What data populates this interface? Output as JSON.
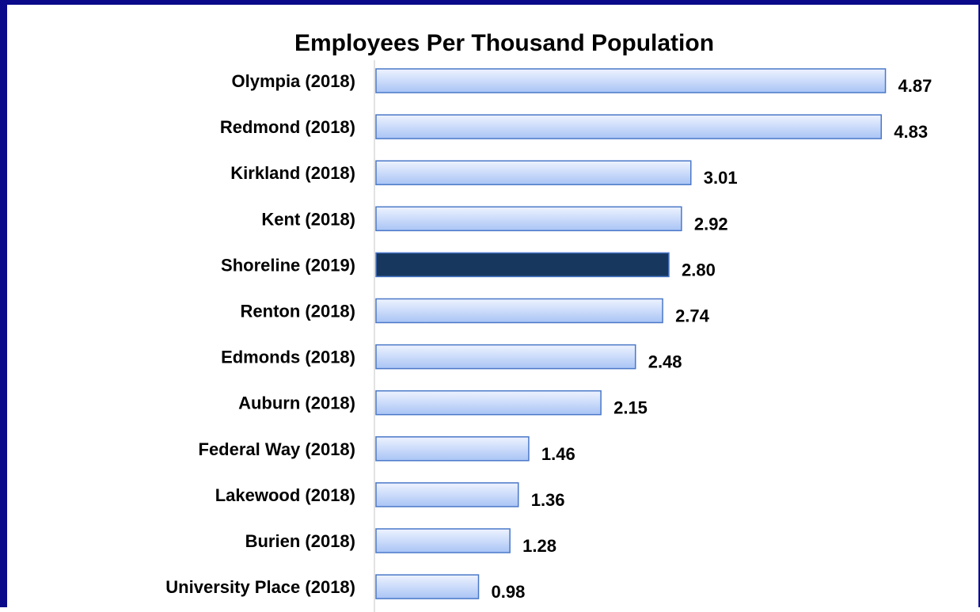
{
  "chart_data": {
    "type": "bar",
    "orientation": "horizontal",
    "title": "Employees Per Thousand Population",
    "xlabel": "",
    "ylabel": "",
    "xlim": [
      0,
      5.6
    ],
    "grid": false,
    "legend": "none",
    "categories": [
      "Olympia (2018)",
      "Redmond (2018)",
      "Kirkland (2018)",
      "Kent (2018)",
      "Shoreline (2019)",
      "Renton (2018)",
      "Edmonds (2018)",
      "Auburn (2018)",
      "Federal Way (2018)",
      "Lakewood (2018)",
      "Burien (2018)",
      "University Place (2018)"
    ],
    "values": [
      4.87,
      4.83,
      3.01,
      2.92,
      2.8,
      2.74,
      2.48,
      2.15,
      1.46,
      1.36,
      1.28,
      0.98
    ],
    "value_labels": [
      "4.87",
      "4.83",
      "3.01",
      "2.92",
      "2.80",
      "2.74",
      "2.48",
      "2.15",
      "1.46",
      "1.36",
      "1.28",
      "0.98"
    ],
    "highlight_category": "Shoreline (2019)",
    "colors": {
      "bar_fill_light": "#eef3ff",
      "bar_fill_dark": "#a9c4f5",
      "bar_stroke": "#4a78c8",
      "highlight_fill": "#17375e",
      "highlight_stroke": "#4a78c8",
      "axis": "#d9d9d9",
      "frame": "#0a0a8a"
    }
  }
}
